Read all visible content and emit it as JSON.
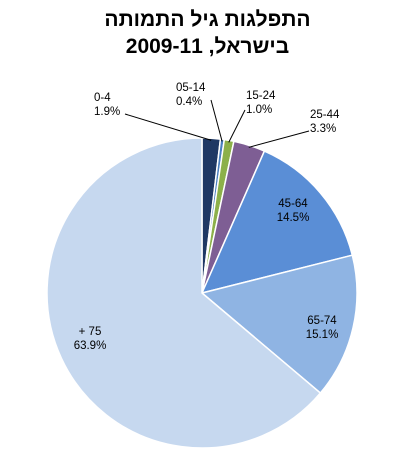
{
  "title": {
    "line1": "התפלגות גיל התמותה",
    "line2": "בישראל, 2009-11"
  },
  "chart_data": {
    "type": "pie",
    "title": "התפלגות גיל התמותה בישראל, 2009-11",
    "start_angle_deg": 0,
    "direction": "clockwise",
    "legend": "none",
    "slices": [
      {
        "label": "0-4",
        "value": 1.9,
        "value_text": "1.9%",
        "color": "#1f3864"
      },
      {
        "label": "05-14",
        "value": 0.4,
        "value_text": "0.4%",
        "color": "#4a7fc0"
      },
      {
        "label": "15-24",
        "value": 1.0,
        "value_text": "1.0%",
        "color": "#8cb04a"
      },
      {
        "label": "25-44",
        "value": 3.3,
        "value_text": "3.3%",
        "color": "#7e5e94"
      },
      {
        "label": "45-64",
        "value": 14.5,
        "value_text": "14.5%",
        "color": "#5a8ed6"
      },
      {
        "label": "65-74",
        "value": 15.1,
        "value_text": "15.1%",
        "color": "#8fb4e3"
      },
      {
        "label": "+ 75",
        "value": 63.9,
        "value_text": "63.9%",
        "color": "#c6d8ef"
      }
    ]
  }
}
